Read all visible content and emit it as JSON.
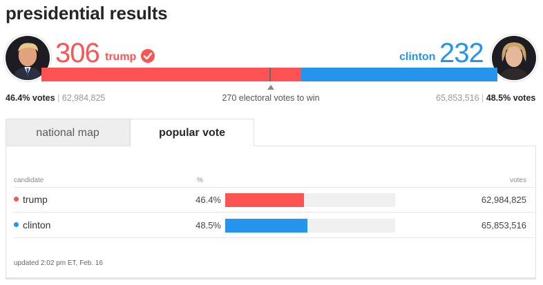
{
  "title": "presidential results",
  "trump": {
    "ev": "306",
    "name": "trump",
    "pct_votes": "46.4% votes",
    "votes": "62,984,825",
    "color": "#fd5352",
    "winner_icon": "check-circle-icon",
    "ev_bar_fraction": 0.569
  },
  "clinton": {
    "ev": "232",
    "name": "clinton",
    "pct_votes": "48.5% votes",
    "votes": "65,853,516",
    "color": "#2494ed"
  },
  "ev_to_win": "270 electoral votes to win",
  "tabs": [
    {
      "label": "national map",
      "active": false
    },
    {
      "label": "popular vote",
      "active": true
    }
  ],
  "table": {
    "headers": {
      "candidate": "candidate",
      "pct": "%",
      "votes": "votes"
    },
    "rows": [
      {
        "name": "trump",
        "pct": "46.4%",
        "fraction": 0.464,
        "votes": "62,984,825",
        "color": "#fd5352"
      },
      {
        "name": "clinton",
        "pct": "48.5%",
        "fraction": 0.485,
        "votes": "65,853,516",
        "color": "#2494ed"
      }
    ]
  },
  "updated": "updated 2:02 pm ET, Feb. 16"
}
